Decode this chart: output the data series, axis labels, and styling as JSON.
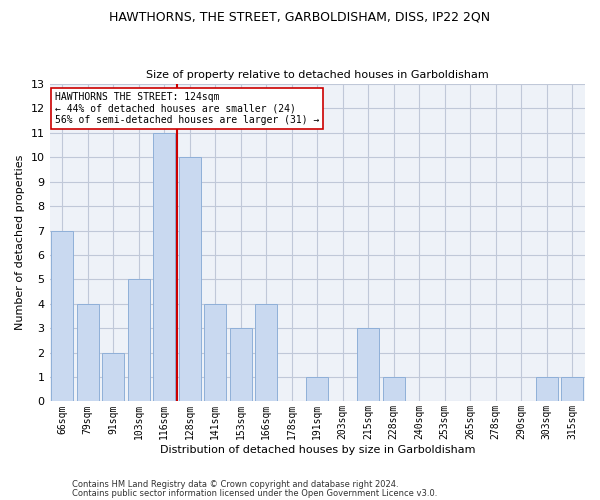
{
  "title": "HAWTHORNS, THE STREET, GARBOLDISHAM, DISS, IP22 2QN",
  "subtitle": "Size of property relative to detached houses in Garboldisham",
  "xlabel": "Distribution of detached houses by size in Garboldisham",
  "ylabel": "Number of detached properties",
  "categories": [
    "66sqm",
    "79sqm",
    "91sqm",
    "103sqm",
    "116sqm",
    "128sqm",
    "141sqm",
    "153sqm",
    "166sqm",
    "178sqm",
    "191sqm",
    "203sqm",
    "215sqm",
    "228sqm",
    "240sqm",
    "253sqm",
    "265sqm",
    "278sqm",
    "290sqm",
    "303sqm",
    "315sqm"
  ],
  "values": [
    7,
    4,
    2,
    5,
    11,
    10,
    4,
    3,
    4,
    0,
    1,
    0,
    3,
    1,
    0,
    0,
    0,
    0,
    0,
    1,
    1
  ],
  "bar_color": "#c9d9f0",
  "bar_edgecolor": "#8fb0d8",
  "grid_color": "#c0c8d8",
  "bg_color": "#eef2f8",
  "vline_idx": 4.5,
  "vline_color": "#cc0000",
  "annotation_line1": "HAWTHORNS THE STREET: 124sqm",
  "annotation_line2": "← 44% of detached houses are smaller (24)",
  "annotation_line3": "56% of semi-detached houses are larger (31) →",
  "annotation_box_color": "#ffffff",
  "annotation_box_edgecolor": "#cc0000",
  "ylim": [
    0,
    13
  ],
  "yticks": [
    0,
    1,
    2,
    3,
    4,
    5,
    6,
    7,
    8,
    9,
    10,
    11,
    12,
    13
  ],
  "footer1": "Contains HM Land Registry data © Crown copyright and database right 2024.",
  "footer2": "Contains public sector information licensed under the Open Government Licence v3.0."
}
